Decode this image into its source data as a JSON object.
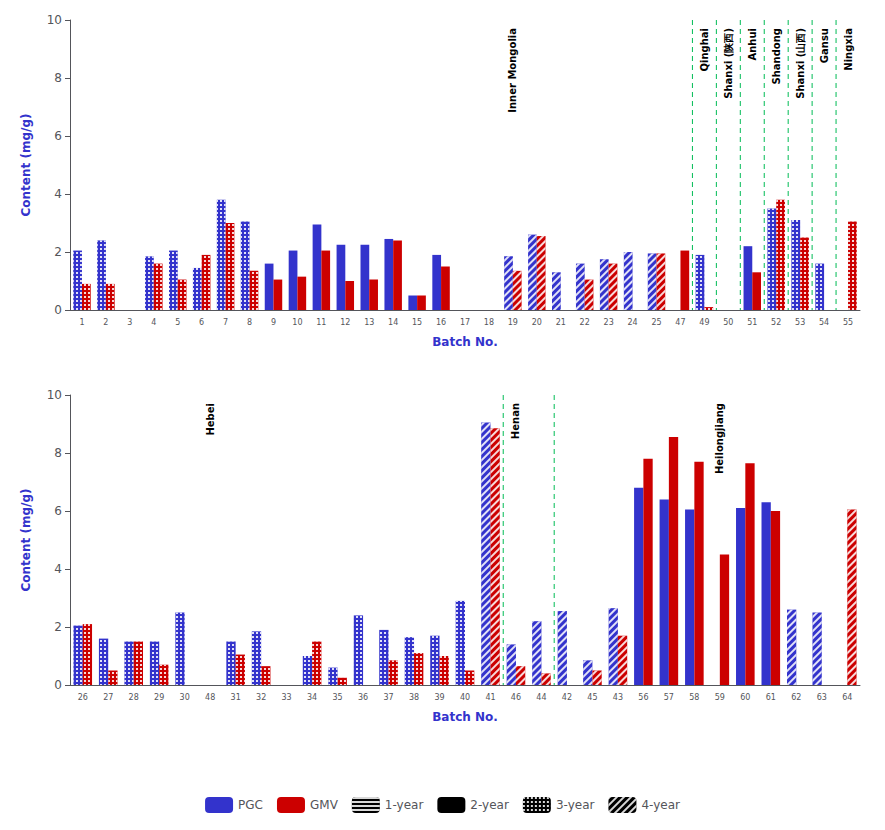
{
  "chart_data": [
    {
      "type": "bar",
      "xlabel": "Batch No.",
      "ylabel": "Content (mg/g)",
      "categories": [
        "1",
        "2",
        "3",
        "4",
        "5",
        "6",
        "7",
        "8",
        "9",
        "10",
        "11",
        "12",
        "13",
        "14",
        "15",
        "16",
        "17",
        "18",
        "19",
        "20",
        "21",
        "22",
        "23",
        "24",
        "25",
        "47",
        "49",
        "50",
        "51",
        "52",
        "53",
        "54",
        "55"
      ],
      "series": [
        {
          "name": "PGC",
          "color": "#3333cc",
          "values": [
            2.05,
            2.4,
            0,
            1.85,
            2.05,
            1.45,
            3.8,
            3.05,
            1.6,
            2.05,
            2.95,
            2.25,
            2.25,
            2.45,
            0.5,
            1.9,
            0,
            0,
            1.85,
            2.6,
            1.3,
            1.6,
            1.75,
            2.0,
            1.95,
            0,
            1.9,
            0,
            2.2,
            3.5,
            3.1,
            1.6,
            0
          ],
          "years": [
            "3",
            "3",
            "3",
            "3",
            "3",
            "3",
            "3",
            "3",
            "2",
            "2",
            "2",
            "2",
            "2",
            "2",
            "2",
            "2",
            "1",
            "1",
            "4",
            "4",
            "4",
            "4",
            "4",
            "4",
            "4",
            "3",
            "3",
            "2",
            "2",
            "3",
            "3",
            "3",
            "3"
          ]
        },
        {
          "name": "GMV",
          "color": "#cc0000",
          "values": [
            0.9,
            0.9,
            0,
            1.6,
            1.05,
            1.9,
            3.0,
            1.35,
            1.05,
            1.15,
            2.05,
            1.0,
            1.05,
            2.4,
            0.5,
            1.5,
            0,
            0,
            1.35,
            2.55,
            0,
            1.05,
            1.6,
            0,
            1.95,
            2.05,
            0.1,
            0,
            1.3,
            3.8,
            2.5,
            0,
            3.05
          ],
          "years": [
            "3",
            "3",
            "3",
            "3",
            "3",
            "3",
            "3",
            "3",
            "2",
            "2",
            "2",
            "2",
            "2",
            "2",
            "2",
            "2",
            "1",
            "1",
            "4",
            "4",
            "4",
            "4",
            "4",
            "4",
            "4",
            "2",
            "3",
            "2",
            "2",
            "3",
            "3",
            "3",
            "3"
          ]
        }
      ],
      "ylim": [
        0,
        10
      ],
      "yticks": [
        0,
        2,
        4,
        6,
        8,
        10
      ],
      "grid": false,
      "legend": "bottom",
      "year_styles": [
        {
          "year": "1",
          "label": "1-year"
        },
        {
          "year": "2",
          "label": "2-year"
        },
        {
          "year": "3",
          "label": "3-year"
        },
        {
          "year": "4",
          "label": "4-year"
        }
      ],
      "annotations": [
        {
          "text": "Inner Mongolia",
          "category": "19"
        },
        {
          "text": "Qinghai",
          "category": "49"
        },
        {
          "text": "Shanxi (陕西)",
          "category": "50"
        },
        {
          "text": "Anhui",
          "category": "51"
        },
        {
          "text": "Shandong",
          "category": "52"
        },
        {
          "text": "Shanxi (山西)",
          "category": "53"
        },
        {
          "text": "Gansu",
          "category": "54"
        },
        {
          "text": "Ningxia",
          "category": "55"
        }
      ],
      "region_lines": {
        "color": "#00bb55",
        "before": [
          "49",
          "50",
          "51",
          "52",
          "53",
          "54",
          "55"
        ]
      }
    },
    {
      "type": "bar",
      "xlabel": "Batch No.",
      "ylabel": "Content (mg/g)",
      "categories": [
        "26",
        "27",
        "28",
        "29",
        "30",
        "48",
        "31",
        "32",
        "33",
        "34",
        "35",
        "36",
        "37",
        "38",
        "39",
        "40",
        "41",
        "46",
        "44",
        "42",
        "45",
        "43",
        "56",
        "57",
        "58",
        "59",
        "60",
        "61",
        "62",
        "63",
        "64"
      ],
      "series": [
        {
          "name": "PGC",
          "color": "#3333cc",
          "values": [
            2.05,
            1.6,
            1.5,
            1.5,
            2.5,
            0,
            1.5,
            1.85,
            0,
            1.0,
            0.6,
            2.4,
            1.9,
            1.65,
            1.7,
            2.9,
            9.05,
            1.4,
            2.2,
            2.55,
            0.85,
            2.65,
            6.8,
            6.4,
            6.05,
            0,
            6.1,
            6.3,
            2.6,
            2.5,
            0
          ],
          "years": [
            "3",
            "3",
            "3",
            "3",
            "3",
            "1",
            "3",
            "3",
            "3",
            "3",
            "3",
            "3",
            "3",
            "3",
            "3",
            "3",
            "4",
            "4",
            "4",
            "4",
            "4",
            "4",
            "2",
            "2",
            "2",
            "2",
            "2",
            "2",
            "4",
            "4",
            "4"
          ]
        },
        {
          "name": "GMV",
          "color": "#cc0000",
          "values": [
            2.1,
            0.5,
            1.5,
            0.7,
            0,
            0,
            1.05,
            0.65,
            0,
            1.5,
            0.25,
            0,
            0.85,
            1.1,
            1.0,
            0.5,
            8.85,
            0.65,
            0.4,
            0,
            0.5,
            1.7,
            7.8,
            8.55,
            7.7,
            4.5,
            7.65,
            6.0,
            0,
            0,
            6.05
          ],
          "years": [
            "3",
            "3",
            "3",
            "3",
            "3",
            "1",
            "3",
            "3",
            "3",
            "3",
            "3",
            "3",
            "3",
            "3",
            "3",
            "3",
            "4",
            "4",
            "4",
            "4",
            "4",
            "4",
            "2",
            "2",
            "2",
            "2",
            "2",
            "2",
            "4",
            "4",
            "4"
          ]
        }
      ],
      "ylim": [
        0,
        10
      ],
      "yticks": [
        0,
        2,
        4,
        6,
        8,
        10
      ],
      "grid": false,
      "annotations": [
        {
          "text": "Hebei",
          "category": "48"
        },
        {
          "text": "Henan",
          "category": "46"
        },
        {
          "text": "Heilongjiang",
          "category": "59"
        }
      ],
      "region_lines": {
        "color": "#00bb55",
        "before": [
          "46",
          "42"
        ]
      }
    }
  ]
}
